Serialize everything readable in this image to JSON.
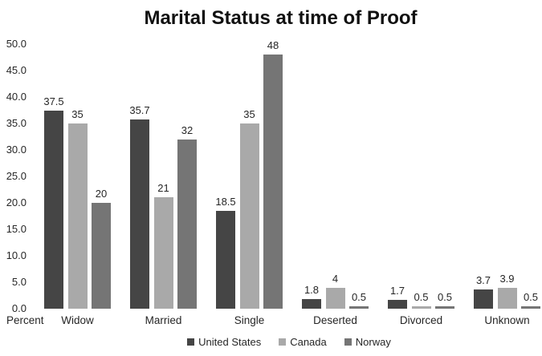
{
  "chart_data": {
    "type": "bar",
    "title": "Marital Status at time of Proof",
    "categories": [
      "Widow",
      "Married",
      "Single",
      "Deserted",
      "Divorced",
      "Unknown"
    ],
    "series": [
      {
        "name": "United States",
        "color": "#454545",
        "values": [
          37.5,
          35.7,
          18.5,
          1.8,
          1.7,
          3.7
        ],
        "labels": [
          "37.5",
          "35.7",
          "18.5",
          "1.8",
          "1.7",
          "3.7"
        ]
      },
      {
        "name": "Canada",
        "color": "#a9a9a9",
        "values": [
          35,
          21,
          35,
          4,
          0.5,
          3.9
        ],
        "labels": [
          "35",
          "21",
          "35",
          "4",
          "0.5",
          "3.9"
        ]
      },
      {
        "name": "Norway",
        "color": "#757575",
        "values": [
          20,
          32,
          48,
          0.5,
          0.5,
          0.5
        ],
        "labels": [
          "20",
          "32",
          "48",
          "0.5",
          "0.5",
          "0.5"
        ]
      }
    ],
    "y_axis": {
      "corner_label": "Percent",
      "tick_values": [
        0,
        5,
        10,
        15,
        20,
        25,
        30,
        35,
        40,
        45,
        50
      ],
      "tick_labels": [
        "0.0",
        "5.0",
        "10.0",
        "15.0",
        "20.0",
        "25.0",
        "30.0",
        "35.0",
        "40.0",
        "45.0",
        "50.0"
      ],
      "ylim": [
        0,
        50
      ]
    },
    "legend_position": "bottom",
    "grid": false
  }
}
